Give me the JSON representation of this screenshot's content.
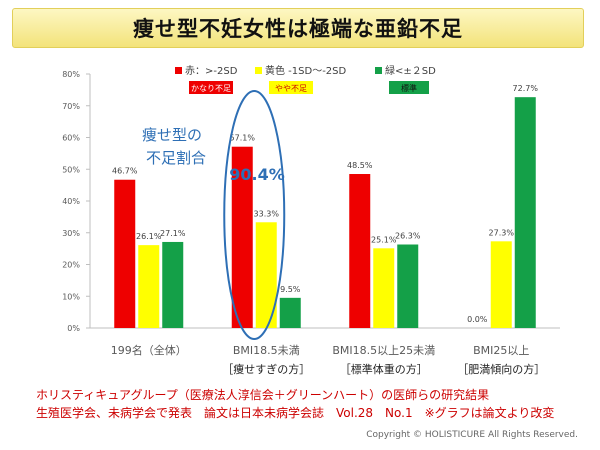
{
  "title": "痩せ型不妊女性は極端な亜鉛不足",
  "chart_data": {
    "type": "bar",
    "categories": [
      "199名（全体）",
      "BMI18.5未満",
      "BMI18.5以上25未満",
      "BMI25以上"
    ],
    "category_notes": [
      "",
      "［痩せすぎの方］",
      "［標準体重の方］",
      "［肥満傾向の方］"
    ],
    "series": [
      {
        "name": "赤：>-2SD",
        "tag": "かなり不足",
        "color": "#ee0000",
        "tag_text_color": "#ffffff",
        "values": [
          46.7,
          57.1,
          48.5,
          0.0
        ],
        "labels": [
          "46.7%",
          "57.1%",
          "48.5%",
          "0.0%"
        ]
      },
      {
        "name": "黄色 -1SD〜-2SD",
        "tag": "やや不足",
        "color": "#ffff00",
        "tag_text_color": "#cc0000",
        "values": [
          26.1,
          33.3,
          25.1,
          27.3
        ],
        "labels": [
          "26.1%",
          "33.3%",
          "25.1%",
          "27.3%"
        ]
      },
      {
        "name": "緑<±２SD",
        "tag": "標準",
        "color": "#14a048",
        "tag_text_color": "#111111",
        "values": [
          27.1,
          9.5,
          26.3,
          72.7
        ],
        "labels": [
          "27.1%",
          "9.5%",
          "26.3%",
          "72.7%"
        ]
      }
    ],
    "yticks": [
      "0%",
      "10%",
      "20%",
      "30%",
      "40%",
      "50%",
      "60%",
      "70%",
      "80%"
    ],
    "ylim": [
      0,
      80
    ],
    "grid": false,
    "legend_position": "top",
    "annotation": {
      "lines": [
        "痩せ型の",
        "不足割合"
      ],
      "value": "90.4%",
      "color": "#2e6fb5",
      "highlight_category": 1
    }
  },
  "footer": {
    "line1": "ホリスティキュアグループ（医療法人淳信会＋グリーンハート）の医師らの研究結果",
    "line2": "生殖医学会、未病学会で発表　論文は日本未病学会誌　Vol.28　No.1　※グラフは論文より改変"
  },
  "copyright": "Copyright © HOLISTICURE All Rights Reserved."
}
